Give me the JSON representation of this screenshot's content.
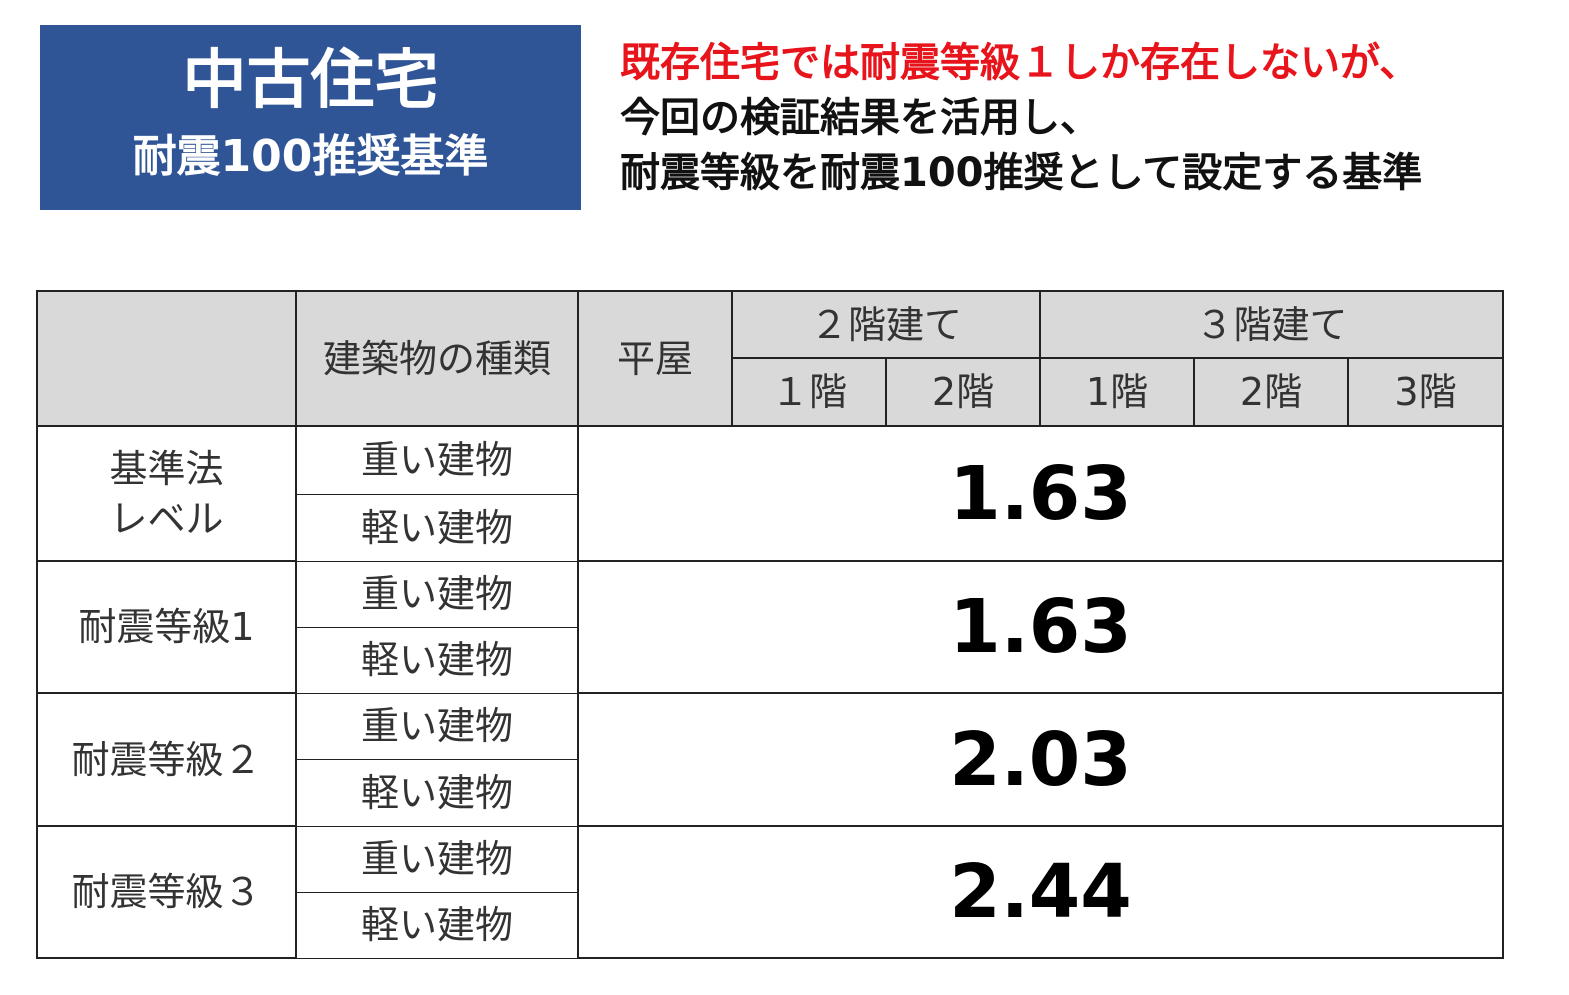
{
  "header": {
    "title": "中古住宅",
    "subtitle": "耐震100推奨基準"
  },
  "note": {
    "lines": [
      "既存住宅では耐震等級１しか存在しないが、",
      "今回の検証結果を活用し、",
      "耐震等級を耐震100推奨として設定する基準"
    ]
  },
  "table": {
    "columns": {
      "type": "建築物の種類",
      "single": "平屋",
      "two_story": "２階建て",
      "three_story": "３階建て",
      "floors": [
        "１階",
        "2階",
        "1階",
        "2階",
        "3階"
      ]
    },
    "groups": [
      {
        "label": "基準法\nレベル",
        "types": [
          "重い建物",
          "軽い建物"
        ],
        "value": "1.63"
      },
      {
        "label": "耐震等級1",
        "types": [
          "重い建物",
          "軽い建物"
        ],
        "value": "1.63"
      },
      {
        "label": "耐震等級２",
        "types": [
          "重い建物",
          "軽い建物"
        ],
        "value": "2.03"
      },
      {
        "label": "耐震等級３",
        "types": [
          "重い建物",
          "軽い建物"
        ],
        "value": "2.44"
      }
    ]
  }
}
